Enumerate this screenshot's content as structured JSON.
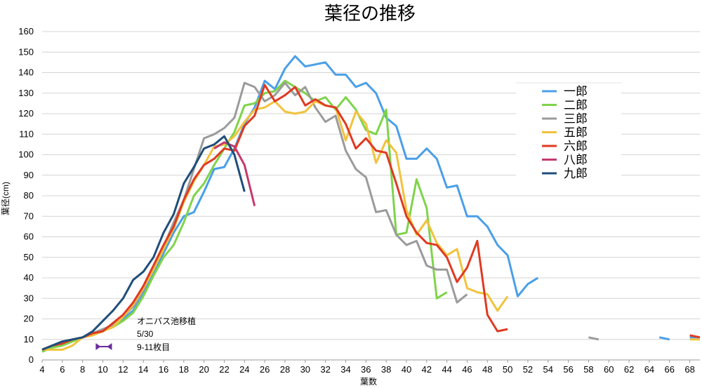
{
  "chart_data": {
    "type": "line",
    "title": "葉径の推移",
    "xlabel": "葉数",
    "ylabel": "葉径(cm)",
    "xlim": [
      4,
      69
    ],
    "ylim": [
      0,
      160
    ],
    "x_ticks": [
      4,
      6,
      8,
      10,
      12,
      14,
      16,
      18,
      20,
      22,
      24,
      26,
      28,
      30,
      32,
      34,
      36,
      38,
      40,
      42,
      44,
      46,
      48,
      50,
      52,
      54,
      56,
      58,
      60,
      62,
      64,
      66,
      68
    ],
    "y_ticks": [
      0,
      10,
      20,
      30,
      40,
      50,
      60,
      70,
      80,
      90,
      100,
      110,
      120,
      130,
      140,
      150,
      160
    ],
    "grid": "horizontal",
    "legend_position": "right",
    "series": [
      {
        "name": "一郎",
        "color": "#4a9fe8",
        "points": [
          [
            4,
            5
          ],
          [
            5,
            7
          ],
          [
            6,
            9
          ],
          [
            7,
            10
          ],
          [
            8,
            11
          ],
          [
            9,
            13
          ],
          [
            10,
            15
          ],
          [
            11,
            16
          ],
          [
            12,
            20
          ],
          [
            13,
            24
          ],
          [
            14,
            32
          ],
          [
            15,
            42
          ],
          [
            16,
            52
          ],
          [
            17,
            62
          ],
          [
            18,
            70
          ],
          [
            19,
            72
          ],
          [
            20,
            82
          ],
          [
            21,
            93
          ],
          [
            22,
            94
          ],
          [
            23,
            103
          ],
          [
            24,
            115
          ],
          [
            25,
            123
          ],
          [
            26,
            136
          ],
          [
            27,
            132
          ],
          [
            28,
            142
          ],
          [
            29,
            148
          ],
          [
            30,
            143
          ],
          [
            31,
            144
          ],
          [
            32,
            145
          ],
          [
            33,
            139
          ],
          [
            34,
            139
          ],
          [
            35,
            133
          ],
          [
            36,
            135
          ],
          [
            37,
            130
          ],
          [
            38,
            118
          ],
          [
            39,
            114
          ],
          [
            40,
            98
          ],
          [
            41,
            98
          ],
          [
            42,
            103
          ],
          [
            43,
            98
          ],
          [
            44,
            84
          ],
          [
            45,
            85
          ],
          [
            46,
            70
          ],
          [
            47,
            70
          ],
          [
            48,
            65
          ],
          [
            49,
            56
          ],
          [
            50,
            51
          ],
          [
            51,
            31
          ],
          [
            52,
            37
          ],
          [
            53,
            40
          ],
          null,
          [
            65,
            11
          ],
          [
            66,
            10
          ],
          null,
          [
            68,
            11
          ],
          [
            69,
            11
          ]
        ]
      },
      {
        "name": "二郎",
        "color": "#7ed44a",
        "points": [
          [
            4,
            4
          ],
          [
            5,
            6
          ],
          [
            6,
            7
          ],
          [
            7,
            9
          ],
          [
            8,
            11
          ],
          [
            9,
            12
          ],
          [
            10,
            14
          ],
          [
            11,
            16
          ],
          [
            12,
            19
          ],
          [
            13,
            23
          ],
          [
            14,
            31
          ],
          [
            15,
            41
          ],
          [
            16,
            50
          ],
          [
            17,
            56
          ],
          [
            18,
            67
          ],
          [
            19,
            80
          ],
          [
            20,
            86
          ],
          [
            21,
            95
          ],
          [
            22,
            103
          ],
          [
            23,
            111
          ],
          [
            24,
            124
          ],
          [
            25,
            125
          ],
          [
            26,
            130
          ],
          [
            27,
            131
          ],
          [
            28,
            136
          ],
          [
            29,
            133
          ],
          [
            30,
            130
          ],
          [
            31,
            126
          ],
          [
            32,
            128
          ],
          [
            33,
            122
          ],
          [
            34,
            128
          ],
          [
            35,
            122
          ],
          [
            36,
            112
          ],
          [
            37,
            110
          ],
          [
            38,
            122
          ],
          [
            39,
            61
          ],
          [
            40,
            62
          ],
          [
            41,
            88
          ],
          [
            42,
            74
          ],
          [
            43,
            30
          ],
          [
            44,
            33
          ]
        ]
      },
      {
        "name": "三郎",
        "color": "#9b9b9b",
        "points": [
          [
            4,
            5
          ],
          [
            5,
            7
          ],
          [
            6,
            8
          ],
          [
            7,
            10
          ],
          [
            8,
            11
          ],
          [
            9,
            13
          ],
          [
            10,
            15
          ],
          [
            11,
            17
          ],
          [
            12,
            21
          ],
          [
            13,
            26
          ],
          [
            14,
            34
          ],
          [
            15,
            45
          ],
          [
            16,
            55
          ],
          [
            17,
            67
          ],
          [
            18,
            78
          ],
          [
            19,
            93
          ],
          [
            20,
            108
          ],
          [
            21,
            110
          ],
          [
            22,
            113
          ],
          [
            23,
            118
          ],
          [
            24,
            135
          ],
          [
            25,
            133
          ],
          [
            26,
            126
          ],
          [
            27,
            129
          ],
          [
            28,
            135
          ],
          [
            29,
            129
          ],
          [
            30,
            133
          ],
          [
            31,
            123
          ],
          [
            32,
            116
          ],
          [
            33,
            119
          ],
          [
            34,
            102
          ],
          [
            35,
            93
          ],
          [
            36,
            89
          ],
          [
            37,
            72
          ],
          [
            38,
            73
          ],
          [
            39,
            61
          ],
          [
            40,
            56
          ],
          [
            41,
            58
          ],
          [
            42,
            46
          ],
          [
            43,
            44
          ],
          [
            44,
            44
          ],
          [
            45,
            28
          ],
          [
            46,
            32
          ],
          null,
          [
            58,
            11
          ],
          [
            59,
            10
          ]
        ]
      },
      {
        "name": "五郎",
        "color": "#f2c23c",
        "points": [
          [
            4,
            5
          ],
          [
            5,
            5
          ],
          [
            6,
            5
          ],
          [
            7,
            7
          ],
          [
            8,
            11
          ],
          [
            9,
            12
          ],
          [
            10,
            14
          ],
          [
            11,
            16
          ],
          [
            12,
            21
          ],
          [
            13,
            27
          ],
          [
            14,
            35
          ],
          [
            15,
            44
          ],
          [
            16,
            54
          ],
          [
            17,
            64
          ],
          [
            18,
            77
          ],
          [
            19,
            87
          ],
          [
            20,
            95
          ],
          [
            21,
            104
          ],
          [
            22,
            105
          ],
          [
            23,
            109
          ],
          [
            24,
            116
          ],
          [
            25,
            122
          ],
          [
            26,
            123
          ],
          [
            27,
            126
          ],
          [
            28,
            121
          ],
          [
            29,
            120
          ],
          [
            30,
            121
          ],
          [
            31,
            126
          ],
          [
            32,
            124
          ],
          [
            33,
            123
          ],
          [
            34,
            107
          ],
          [
            35,
            121
          ],
          [
            36,
            115
          ],
          [
            37,
            96
          ],
          [
            38,
            107
          ],
          [
            39,
            101
          ],
          [
            40,
            73
          ],
          [
            41,
            61
          ],
          [
            42,
            68
          ],
          [
            43,
            57
          ],
          [
            44,
            51
          ],
          [
            45,
            54
          ],
          [
            46,
            35
          ],
          [
            47,
            33
          ],
          [
            48,
            32
          ],
          [
            49,
            24
          ],
          [
            50,
            31
          ],
          null,
          [
            68,
            10
          ],
          [
            69,
            10
          ]
        ]
      },
      {
        "name": "六郎",
        "color": "#e03a22",
        "points": [
          [
            4,
            5
          ],
          [
            5,
            7
          ],
          [
            6,
            8
          ],
          [
            7,
            10
          ],
          [
            8,
            11
          ],
          [
            9,
            13
          ],
          [
            10,
            14
          ],
          [
            11,
            18
          ],
          [
            12,
            22
          ],
          [
            13,
            28
          ],
          [
            14,
            36
          ],
          [
            15,
            46
          ],
          [
            16,
            56
          ],
          [
            17,
            65
          ],
          [
            18,
            78
          ],
          [
            19,
            88
          ],
          [
            20,
            95
          ],
          [
            21,
            98
          ],
          [
            22,
            103
          ],
          [
            23,
            102
          ],
          [
            24,
            114
          ],
          [
            25,
            119
          ],
          [
            26,
            134
          ],
          [
            27,
            126
          ],
          [
            28,
            129
          ],
          [
            29,
            133
          ],
          [
            30,
            124
          ],
          [
            31,
            127
          ],
          [
            32,
            124
          ],
          [
            33,
            123
          ],
          [
            34,
            115
          ],
          [
            35,
            103
          ],
          [
            36,
            108
          ],
          [
            37,
            102
          ],
          [
            38,
            101
          ],
          [
            39,
            86
          ],
          [
            40,
            70
          ],
          [
            41,
            62
          ],
          [
            42,
            57
          ],
          [
            43,
            56
          ],
          [
            44,
            50
          ],
          [
            45,
            38
          ],
          [
            46,
            45
          ],
          [
            47,
            58
          ],
          [
            48,
            22
          ],
          [
            49,
            14
          ],
          [
            50,
            15
          ],
          null,
          [
            68,
            12
          ],
          [
            69,
            11
          ]
        ]
      },
      {
        "name": "八郎",
        "color": "#c43a6e",
        "points": [
          [
            21,
            103
          ],
          [
            22,
            106
          ],
          [
            23,
            104
          ],
          [
            24,
            95
          ],
          [
            25,
            75
          ]
        ]
      },
      {
        "name": "九郎",
        "color": "#1f4e7a",
        "points": [
          [
            4,
            5
          ],
          [
            5,
            7
          ],
          [
            6,
            9
          ],
          [
            7,
            10
          ],
          [
            8,
            11
          ],
          [
            9,
            14
          ],
          [
            10,
            19
          ],
          [
            11,
            24
          ],
          [
            12,
            30
          ],
          [
            13,
            39
          ],
          [
            14,
            43
          ],
          [
            15,
            50
          ],
          [
            16,
            62
          ],
          [
            17,
            71
          ],
          [
            18,
            86
          ],
          [
            19,
            94
          ],
          [
            20,
            103
          ],
          [
            21,
            105
          ],
          [
            22,
            109
          ],
          [
            23,
            100
          ],
          [
            24,
            82
          ]
        ]
      }
    ],
    "annotation": {
      "lines": [
        "オニバス池移植",
        "5/30",
        "9-11枚目"
      ],
      "marker_range": [
        9.3,
        10.9
      ],
      "marker_y": 6.5,
      "marker_color": "#6a2c9a"
    }
  }
}
